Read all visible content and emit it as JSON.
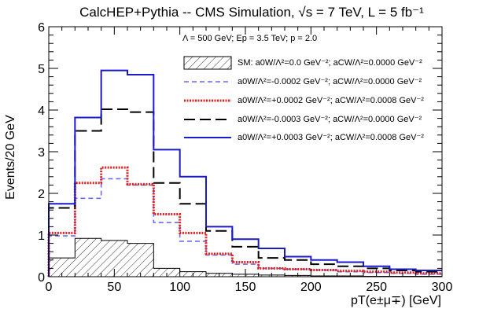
{
  "chart_data": {
    "type": "histogram",
    "title": "CalcHEP+Pythia -- CMS Simulation, √s = 7 TeV, L = 5 fb⁻¹",
    "xlabel": "pT(e±μ∓) [GeV]",
    "ylabel": "Events/20 GeV",
    "xlim": [
      0,
      300
    ],
    "ylim": [
      0,
      6
    ],
    "x_ticks": [
      0,
      50,
      100,
      150,
      200,
      250,
      300
    ],
    "y_ticks": [
      0,
      1,
      2,
      3,
      4,
      5,
      6
    ],
    "bin_edges": [
      0,
      20,
      40,
      60,
      80,
      100,
      120,
      140,
      160,
      180,
      200,
      220,
      240,
      260,
      280,
      300
    ],
    "annotation": "Λ = 500 GeV; Ep = 3.5 TeV; p = 2.0",
    "legend_position": "top-right",
    "series": [
      {
        "name": "SM: a0W/Λ²=0.0 GeV⁻²; aCW/Λ²=0.0000 GeV⁻²",
        "style": "hatched",
        "color": "#000000",
        "values": [
          0.45,
          0.92,
          0.87,
          0.8,
          0.2,
          0.12,
          0.08,
          0.06,
          0.04,
          0.03,
          0.02,
          0.02,
          0.01,
          0.01,
          0.01
        ]
      },
      {
        "name": "a0W/Λ²=-0.0002 GeV⁻²; aCW/Λ²=0.0000 GeV⁻²",
        "style": "dashed",
        "color": "#6b6bf0",
        "values": [
          0.98,
          1.88,
          2.35,
          2.2,
          1.3,
          0.85,
          0.52,
          0.3,
          0.2,
          0.18,
          0.16,
          0.12,
          0.1,
          0.08,
          0.06
        ]
      },
      {
        "name": "a0W/Λ²=+0.0002 GeV⁻²; aCW/Λ²=0.0008 GeV⁻²",
        "style": "dotted",
        "color": "#e02020",
        "values": [
          1.05,
          2.25,
          2.62,
          2.22,
          1.5,
          1.05,
          0.55,
          0.35,
          0.2,
          0.18,
          0.16,
          0.14,
          0.12,
          0.1,
          0.08
        ]
      },
      {
        "name": "a0W/Λ²=-0.0003 GeV⁻²; aCW/Λ²=0.0000 GeV⁻²",
        "style": "longdash",
        "color": "#000000",
        "values": [
          1.65,
          3.5,
          4.02,
          3.95,
          2.25,
          1.75,
          1.1,
          0.72,
          0.45,
          0.4,
          0.3,
          0.25,
          0.2,
          0.15,
          0.12
        ]
      },
      {
        "name": "a0W/Λ²=+0.0003 GeV⁻²; aCW/Λ²=0.0008 GeV⁻²",
        "style": "solid",
        "color": "#1a1ac8",
        "values": [
          1.75,
          3.82,
          4.95,
          4.85,
          3.05,
          2.4,
          1.2,
          0.9,
          0.68,
          0.48,
          0.4,
          0.35,
          0.25,
          0.18,
          0.15
        ]
      }
    ]
  }
}
